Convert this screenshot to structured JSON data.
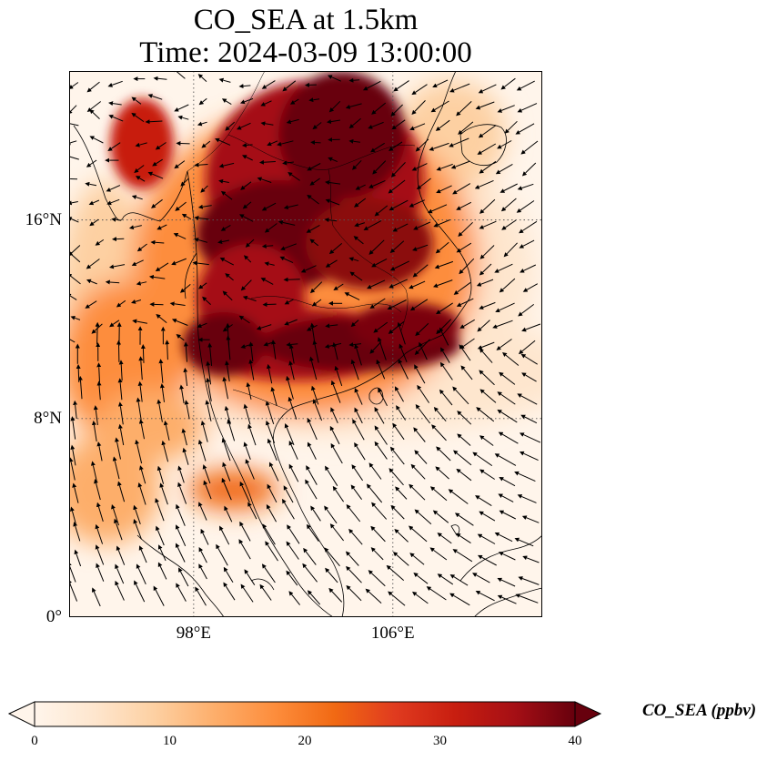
{
  "title": {
    "line1": "CO_SEA at 1.5km",
    "line2": "Time: 2024-03-09 13:00:00"
  },
  "lat_ticks": [
    {
      "value": 16,
      "label": "16°N"
    },
    {
      "value": 8,
      "label": "8°N"
    },
    {
      "value": 0,
      "label": "0°"
    }
  ],
  "lon_ticks": [
    {
      "value": 98,
      "label": "98°E"
    },
    {
      "value": 106,
      "label": "106°E"
    }
  ],
  "colorbar": {
    "title": "CO_SEA (ppbv)",
    "min": 0,
    "max": 40,
    "extend": "both",
    "ticks": [
      "0",
      "10",
      "20",
      "30",
      "40"
    ],
    "colors": [
      "#fff5eb",
      "#fee6ce",
      "#fdd0a2",
      "#fdae6b",
      "#fd8d3c",
      "#f16913",
      "#e03b1f",
      "#c81e10",
      "#a50f15",
      "#67000d"
    ]
  },
  "map": {
    "extent": {
      "lon_min": 93,
      "lon_max": 112,
      "lat_min": 0,
      "lat_max": 22
    },
    "gridlines": "dotted",
    "vectors": "wind"
  }
}
